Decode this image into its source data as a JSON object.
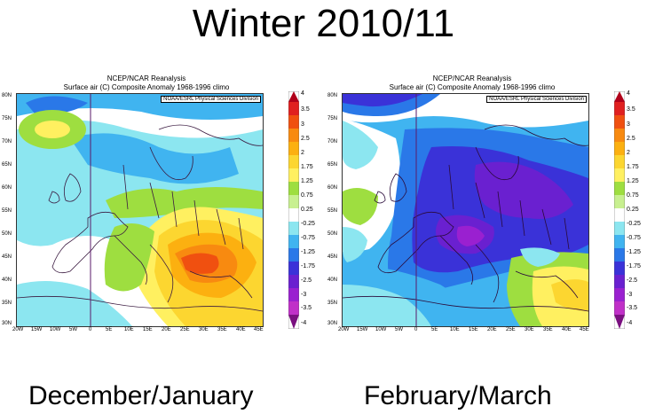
{
  "title": "Winter 2010/11",
  "panels": [
    {
      "caption": "December/January",
      "header_line1": "NCEP/NCAR Reanalysis",
      "header_line2": "Surface air (C) Composite Anomaly 1968-1996 climo",
      "credit": "NOAA/ESRL Physical Sciences Division"
    },
    {
      "caption": "February/March",
      "header_line1": "NCEP/NCAR Reanalysis",
      "header_line2": "Surface air (C) Composite Anomaly 1968-1996 climo",
      "credit": "NOAA/ESRL Physical Sciences Division"
    }
  ],
  "latitudes": [
    "80N",
    "75N",
    "70N",
    "65N",
    "60N",
    "55N",
    "50N",
    "45N",
    "40N",
    "35N",
    "30N"
  ],
  "longitudes": [
    "20W",
    "15W",
    "10W",
    "5W",
    "0",
    "5E",
    "10E",
    "15E",
    "20E",
    "25E",
    "30E",
    "35E",
    "40E",
    "45E"
  ],
  "colorbar": {
    "labels": [
      "4",
      "3.5",
      "3",
      "2.5",
      "2",
      "1.75",
      "1.25",
      "0.75",
      "0.25",
      "-0.25",
      "-0.75",
      "-1.25",
      "-1.75",
      "-2.5",
      "-3",
      "-3.5",
      "-4"
    ],
    "colors": [
      "#b0001a",
      "#e02020",
      "#f05010",
      "#f88a10",
      "#fcb010",
      "#fcd630",
      "#fff060",
      "#9ede40",
      "#ffffff",
      "#8ce6f0",
      "#40b4f0",
      "#2a78e8",
      "#3a32d8",
      "#6a20d0",
      "#9a20d0",
      "#c030c8",
      "#7a1080"
    ]
  }
}
